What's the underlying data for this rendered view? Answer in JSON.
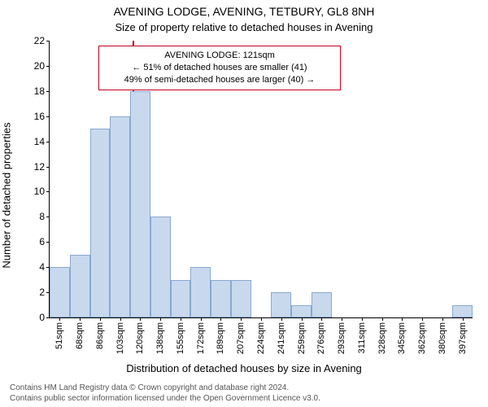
{
  "title": "AVENING LODGE, AVENING, TETBURY, GL8 8NH",
  "subtitle": "Size of property relative to detached houses in Avening",
  "ylabel": "Number of detached properties",
  "xlabel": "Distribution of detached houses by size in Avening",
  "footer_line1": "Contains HM Land Registry data © Crown copyright and database right 2024.",
  "footer_line2": "Contains public sector information licensed under the Open Government Licence v3.0.",
  "chart": {
    "type": "histogram",
    "background_color": "#ffffff",
    "bar_fill": "#c8d9ee",
    "bar_border": "#8aa8cf",
    "axis_color": "#000000",
    "ref_line_color": "#c00020",
    "anno_border_color": "#c00020",
    "ylim": [
      0,
      22
    ],
    "ytick_step": 2,
    "label_fontsize": 13,
    "tick_fontsize": 11,
    "categories": [
      "51sqm",
      "68sqm",
      "86sqm",
      "103sqm",
      "120sqm",
      "138sqm",
      "155sqm",
      "172sqm",
      "189sqm",
      "207sqm",
      "224sqm",
      "241sqm",
      "259sqm",
      "276sqm",
      "293sqm",
      "311sqm",
      "328sqm",
      "345sqm",
      "362sqm",
      "380sqm",
      "397sqm"
    ],
    "values": [
      4,
      5,
      15,
      16,
      18,
      8,
      3,
      4,
      3,
      3,
      0,
      2,
      1,
      2,
      0,
      0,
      0,
      0,
      0,
      0,
      1
    ],
    "bar_width": 1.0,
    "reference_value": 121,
    "x_range": [
      51,
      406
    ],
    "annotation": {
      "line1": "AVENING LODGE: 121sqm",
      "line2": "← 51% of detached houses are smaller (41)",
      "line3": "49% of semi-detached houses are larger (40) →"
    }
  }
}
